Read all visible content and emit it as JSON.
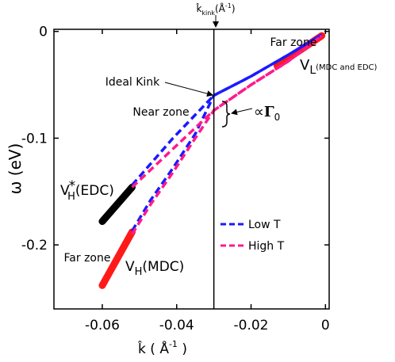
{
  "chart_data": {
    "type": "line",
    "title": "",
    "xlabel": "k̂ ( Å⁻¹ )",
    "ylabel": "ω (eV)",
    "xlim": [
      -0.073,
      0.001
    ],
    "ylim": [
      -0.26,
      0.002
    ],
    "x_ticks": [
      "-0.06",
      "-0.04",
      "-0.02",
      "0"
    ],
    "x_tick_values": [
      -0.06,
      -0.04,
      -0.02,
      0
    ],
    "y_ticks": [
      "0",
      "-0.1",
      "-0.2"
    ],
    "y_tick_values": [
      0,
      -0.1,
      -0.2
    ],
    "kink_line": {
      "x": -0.03,
      "label": "k̂kink(Å⁻¹)"
    },
    "series": [
      {
        "name": "Low T",
        "color": "#1a1aff",
        "style": "dashed",
        "branches": [
          {
            "x": [
              -0.052,
              -0.041,
              -0.03,
              -0.02,
              -0.01,
              -0.001
            ],
            "y": [
              -0.144,
              -0.1,
              -0.06,
              -0.042,
              -0.022,
              -0.003
            ]
          },
          {
            "x": [
              -0.052,
              -0.047,
              -0.041,
              -0.035,
              -0.03,
              -0.02,
              -0.01,
              -0.001
            ],
            "y": [
              -0.187,
              -0.158,
              -0.128,
              -0.096,
              -0.06,
              -0.042,
              -0.022,
              -0.003
            ]
          }
        ]
      },
      {
        "name": "High T",
        "color": "#ff1a8c",
        "style": "dashed",
        "branches": [
          {
            "x": [
              -0.052,
              -0.041,
              -0.03,
              -0.02,
              -0.01,
              -0.001
            ],
            "y": [
              -0.146,
              -0.11,
              -0.074,
              -0.05,
              -0.028,
              -0.004
            ]
          },
          {
            "x": [
              -0.052,
              -0.047,
              -0.041,
              -0.035,
              -0.03,
              -0.02,
              -0.01,
              -0.001
            ],
            "y": [
              -0.19,
              -0.162,
              -0.132,
              -0.1,
              -0.074,
              -0.05,
              -0.028,
              -0.004
            ]
          }
        ]
      }
    ],
    "highlights": [
      {
        "label": "V_H*(EDC)",
        "color": "#000000",
        "x": [
          -0.06,
          -0.052
        ],
        "y": [
          -0.178,
          -0.146
        ]
      },
      {
        "label": "V_H(MDC)",
        "color": "#ff1a1a",
        "x": [
          -0.06,
          -0.052
        ],
        "y": [
          -0.238,
          -0.188
        ]
      },
      {
        "label": "V_L",
        "color": "#ff1a1a",
        "x": [
          -0.013,
          -0.001
        ],
        "y": [
          -0.032,
          -0.004
        ]
      }
    ],
    "annotations": [
      {
        "text": "Far zone",
        "x": -0.0085,
        "y": -0.009
      },
      {
        "text": "Ideal Kink",
        "x": -0.0475,
        "y": -0.048
      },
      {
        "text": "Near zone",
        "x": -0.046,
        "y": -0.077
      },
      {
        "text": "Far zone",
        "x": -0.0675,
        "y": -0.217
      },
      {
        "text": "∝Γ0",
        "x": -0.0235,
        "y": -0.072
      }
    ],
    "labels": {
      "vh_edc_main": "V",
      "vh_edc_sub": "H",
      "vh_edc_sup": "*",
      "vh_edc_tail": "(EDC)",
      "vh_mdc_main": "V",
      "vh_mdc_sub": "H",
      "vh_mdc_tail": "(MDC)",
      "vl_main": "V",
      "vl_sub": "L",
      "vl_tail": "(MDC and EDC)",
      "gamma_prefix": "∝",
      "gamma_main": "Γ",
      "gamma_sub": "0",
      "kink_top_main": "k̂",
      "kink_top_sub": "kink",
      "kink_top_tail": "(Å",
      "kink_top_exp": "-1",
      "kink_top_close": ")",
      "xlabel_main": "k̂ ( Å",
      "xlabel_exp": "-1",
      "xlabel_close": " )"
    },
    "legend": {
      "position": "right",
      "entries": [
        "Low T",
        "High T"
      ]
    },
    "grid": false
  }
}
